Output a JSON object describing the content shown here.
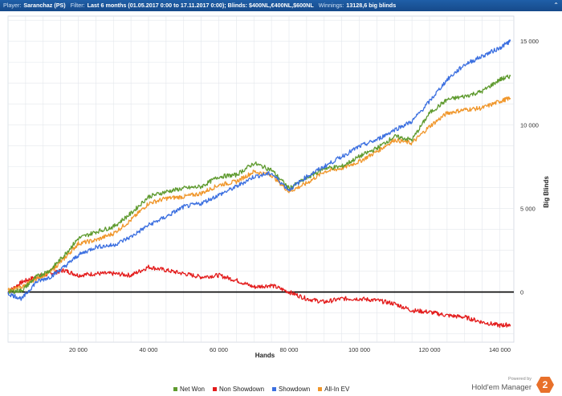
{
  "header": {
    "player_label": "Player:",
    "player_value": "Saranchaz (PS)",
    "filter_label": "Filter:",
    "filter_value": "Last 6 months (01.05.2017 0:00 to 17.11.2017 0:00); Blinds: $400NL,€400NL,$600NL",
    "winnings_label": "Winnings:",
    "winnings_value": "13128,6 big blinds"
  },
  "branding": {
    "powered_by": "Powered by",
    "name": "Hold'em Manager",
    "badge": "2"
  },
  "colors": {
    "net_won": "#5e9a2e",
    "non_showdown": "#e31b1b",
    "showdown": "#3b6fe0",
    "all_in_ev": "#f0962a"
  },
  "chart_data": {
    "type": "line",
    "xlabel": "Hands",
    "ylabel": "Big Blinds",
    "xlim": [
      0,
      144000
    ],
    "ylim": [
      -3000,
      16500
    ],
    "xticks": [
      20000,
      40000,
      60000,
      80000,
      100000,
      120000,
      140000
    ],
    "xtick_labels": [
      "20 000",
      "40 000",
      "60 000",
      "80 000",
      "100 000",
      "120 000",
      "140 000"
    ],
    "yticks": [
      0,
      5000,
      10000,
      15000
    ],
    "ytick_labels": [
      "0",
      "5 000",
      "10 000",
      "15 000"
    ],
    "grid": true,
    "y_axis_side": "right",
    "legend_position": "bottom",
    "series": [
      {
        "name": "Net Won",
        "color": "#5e9a2e",
        "x": [
          0,
          4000,
          8000,
          12000,
          16000,
          20000,
          25000,
          30000,
          35000,
          40000,
          45000,
          50000,
          55000,
          60000,
          65000,
          70000,
          75000,
          80000,
          85000,
          90000,
          95000,
          100000,
          105000,
          110000,
          115000,
          120000,
          125000,
          130000,
          135000,
          140000,
          143000
        ],
        "y": [
          0,
          100,
          900,
          1300,
          2200,
          3200,
          3600,
          3900,
          4700,
          5700,
          6000,
          6200,
          6300,
          6900,
          7000,
          7700,
          7300,
          6200,
          6800,
          7400,
          7500,
          8100,
          8600,
          9300,
          9100,
          10700,
          11500,
          11700,
          12000,
          12700,
          12900
        ]
      },
      {
        "name": "Non Showdown",
        "color": "#e31b1b",
        "x": [
          0,
          4000,
          8000,
          12000,
          16000,
          20000,
          25000,
          30000,
          35000,
          40000,
          45000,
          50000,
          55000,
          60000,
          65000,
          70000,
          75000,
          80000,
          85000,
          90000,
          95000,
          100000,
          105000,
          110000,
          115000,
          120000,
          125000,
          130000,
          135000,
          140000,
          143000
        ],
        "y": [
          0,
          600,
          900,
          1100,
          1300,
          1000,
          1100,
          1100,
          1000,
          1500,
          1300,
          1100,
          900,
          1000,
          700,
          300,
          400,
          0,
          -400,
          -600,
          -400,
          -400,
          -500,
          -700,
          -1100,
          -1200,
          -1400,
          -1500,
          -1800,
          -2000,
          -1950
        ]
      },
      {
        "name": "Showdown",
        "color": "#3b6fe0",
        "x": [
          0,
          4000,
          8000,
          12000,
          16000,
          20000,
          25000,
          30000,
          35000,
          40000,
          45000,
          50000,
          55000,
          60000,
          65000,
          70000,
          75000,
          80000,
          85000,
          90000,
          95000,
          100000,
          105000,
          110000,
          115000,
          120000,
          125000,
          130000,
          135000,
          140000,
          143000
        ],
        "y": [
          -100,
          -400,
          600,
          900,
          1500,
          2200,
          2700,
          2800,
          3300,
          4000,
          4500,
          5100,
          5300,
          5800,
          6300,
          6900,
          7100,
          6100,
          6900,
          7500,
          8100,
          8700,
          9100,
          9700,
          10200,
          11400,
          12700,
          13600,
          14100,
          14600,
          15000
        ]
      },
      {
        "name": "All-In EV",
        "color": "#f0962a",
        "x": [
          0,
          4000,
          8000,
          12000,
          16000,
          20000,
          25000,
          30000,
          35000,
          40000,
          45000,
          50000,
          55000,
          60000,
          65000,
          70000,
          75000,
          80000,
          85000,
          90000,
          95000,
          100000,
          105000,
          110000,
          115000,
          120000,
          125000,
          130000,
          135000,
          140000,
          143000
        ],
        "y": [
          100,
          300,
          800,
          1200,
          2000,
          2900,
          3100,
          3500,
          4300,
          5300,
          5600,
          5700,
          5900,
          6400,
          6600,
          7200,
          7000,
          6000,
          6500,
          7200,
          7400,
          7800,
          8400,
          9100,
          8900,
          9900,
          10700,
          10900,
          11000,
          11400,
          11600
        ]
      }
    ]
  }
}
